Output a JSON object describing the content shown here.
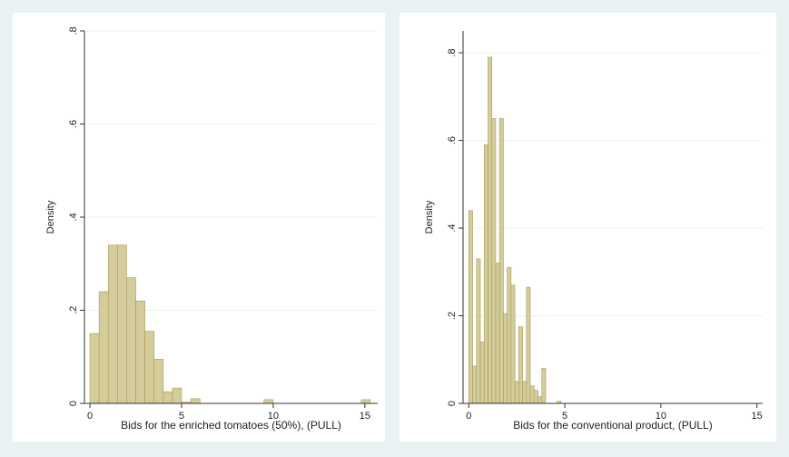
{
  "chart_data": [
    {
      "type": "bar",
      "title": "",
      "xlabel": "Bids for the enriched tomatoes (50%), (PULL)",
      "ylabel": "Density",
      "xlim": [
        -0.3,
        15.7
      ],
      "ylim": [
        0,
        0.8
      ],
      "xticks": [
        0,
        5,
        10,
        15
      ],
      "yticks": [
        0,
        0.2,
        0.4,
        0.6,
        0.8
      ],
      "ytick_labels": [
        "0",
        ".2",
        ".4",
        ".6",
        ".8"
      ],
      "grid": true,
      "bin_width": 0.5,
      "bins": [
        {
          "x0": 0.0,
          "density": 0.15
        },
        {
          "x0": 0.5,
          "density": 0.24
        },
        {
          "x0": 1.0,
          "density": 0.34
        },
        {
          "x0": 1.5,
          "density": 0.34
        },
        {
          "x0": 2.0,
          "density": 0.27
        },
        {
          "x0": 2.5,
          "density": 0.22
        },
        {
          "x0": 3.0,
          "density": 0.155
        },
        {
          "x0": 3.5,
          "density": 0.095
        },
        {
          "x0": 4.0,
          "density": 0.025
        },
        {
          "x0": 4.5,
          "density": 0.033
        },
        {
          "x0": 5.0,
          "density": 0.003
        },
        {
          "x0": 5.5,
          "density": 0.01
        },
        {
          "x0": 9.5,
          "density": 0.008
        },
        {
          "x0": 14.8,
          "density": 0.008
        }
      ]
    },
    {
      "type": "bar",
      "title": "",
      "xlabel": "Bids for the conventional product, (PULL)",
      "ylabel": "Density",
      "xlim": [
        -0.3,
        15.3
      ],
      "ylim": [
        0,
        0.85
      ],
      "xticks": [
        0,
        5,
        10,
        15
      ],
      "yticks": [
        0,
        0.2,
        0.4,
        0.6,
        0.8
      ],
      "ytick_labels": [
        "0",
        ".2",
        ".4",
        ".6",
        ".8"
      ],
      "grid": true,
      "bin_width": 0.2,
      "bins": [
        {
          "x0": 0.0,
          "density": 0.44
        },
        {
          "x0": 0.2,
          "density": 0.085
        },
        {
          "x0": 0.4,
          "density": 0.33
        },
        {
          "x0": 0.6,
          "density": 0.14
        },
        {
          "x0": 0.8,
          "density": 0.59
        },
        {
          "x0": 1.0,
          "density": 0.79
        },
        {
          "x0": 1.2,
          "density": 0.65
        },
        {
          "x0": 1.4,
          "density": 0.32
        },
        {
          "x0": 1.6,
          "density": 0.65
        },
        {
          "x0": 1.8,
          "density": 0.205
        },
        {
          "x0": 2.0,
          "density": 0.31
        },
        {
          "x0": 2.2,
          "density": 0.27
        },
        {
          "x0": 2.4,
          "density": 0.05
        },
        {
          "x0": 2.6,
          "density": 0.175
        },
        {
          "x0": 2.8,
          "density": 0.05
        },
        {
          "x0": 3.0,
          "density": 0.265
        },
        {
          "x0": 3.2,
          "density": 0.04
        },
        {
          "x0": 3.4,
          "density": 0.03
        },
        {
          "x0": 3.6,
          "density": 0.015
        },
        {
          "x0": 3.8,
          "density": 0.08
        },
        {
          "x0": 4.6,
          "density": 0.005
        }
      ]
    }
  ],
  "colors": {
    "bar_fill": "#d4cc9a",
    "bar_stroke": "#a89c5c",
    "grid": "#eaf2f3",
    "background": "#eaf2f3"
  }
}
